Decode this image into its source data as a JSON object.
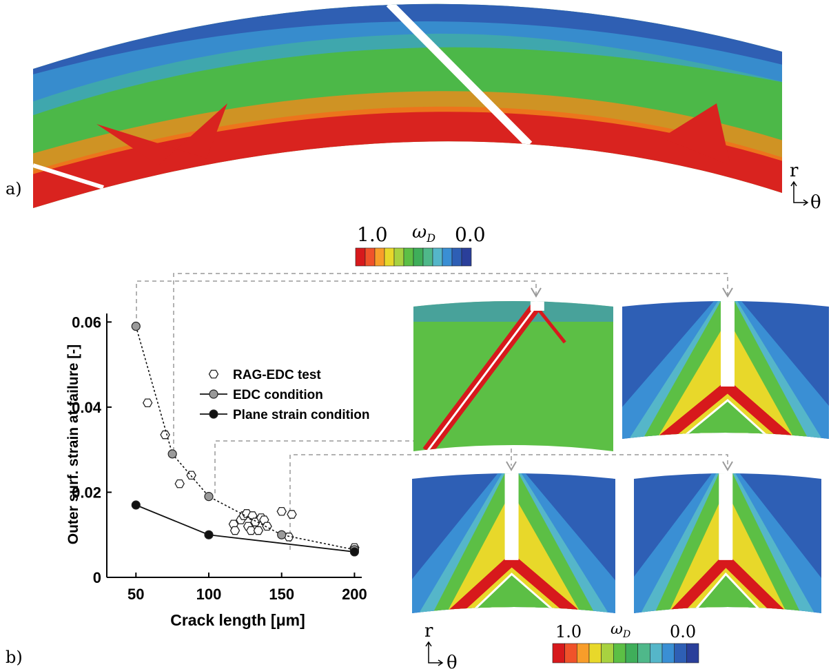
{
  "panel_a": {
    "label": "a)",
    "axis_r": "r",
    "axis_theta": "θ"
  },
  "colorbar_top": {
    "max_label": "1.0",
    "symbol": "ω",
    "subscript": "D",
    "min_label": "0.0"
  },
  "panel_b": {
    "label": "b)",
    "axis_r": "r",
    "axis_theta": "θ"
  },
  "colorbar_bottom": {
    "max_label": "1.0",
    "symbol": "ω",
    "subscript": "D",
    "min_label": "0.0"
  },
  "chart_data": {
    "type": "scatter",
    "x_label": "Crack length [μm]",
    "y_label": "Outer surf. strain at failure [-]",
    "xlim": [
      30,
      205
    ],
    "xticks": [
      50,
      100,
      150,
      200
    ],
    "ylim": [
      0,
      0.062
    ],
    "yticks": [
      0,
      0.02,
      0.04,
      0.06
    ],
    "series": [
      {
        "name": "RAG-EDC test",
        "color": "#ffffff",
        "marker": "hexagon",
        "line": "none",
        "x": [
          58,
          70,
          80,
          88,
          117,
          118,
          122,
          124,
          126,
          127,
          129,
          130,
          132,
          134,
          136,
          138,
          140,
          150,
          155,
          157,
          200
        ],
        "values": [
          0.041,
          0.0335,
          0.022,
          0.024,
          0.0125,
          0.011,
          0.0135,
          0.0145,
          0.015,
          0.012,
          0.011,
          0.0145,
          0.013,
          0.011,
          0.014,
          0.0135,
          0.012,
          0.0155,
          0.0095,
          0.0148,
          0.007
        ]
      },
      {
        "name": "EDC condition",
        "color": "#9a9a9a",
        "marker": "circle",
        "line": "dotted",
        "x": [
          50,
          75,
          100,
          150,
          200
        ],
        "values": [
          0.059,
          0.029,
          0.019,
          0.01,
          0.0065
        ]
      },
      {
        "name": "Plane strain condition",
        "color": "#111111",
        "marker": "circle",
        "line": "solid",
        "x": [
          50,
          100,
          200
        ],
        "values": [
          0.017,
          0.01,
          0.006
        ]
      }
    ]
  }
}
